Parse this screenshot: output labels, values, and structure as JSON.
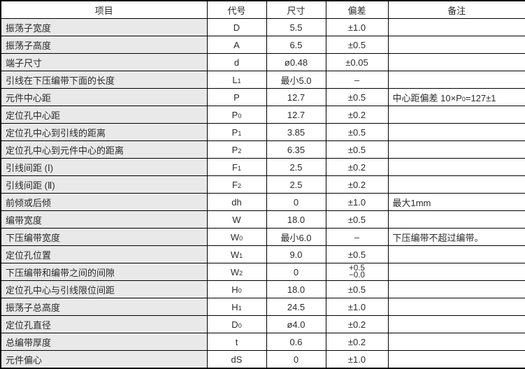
{
  "table": {
    "headers": {
      "item": "项目",
      "code": "代号",
      "size": "尺寸",
      "deviation": "偏差",
      "remark": "备注"
    },
    "rows": [
      {
        "item": "振荡子宽度",
        "code": "D",
        "sub": "",
        "size": "5.5",
        "deviation": "±1.0",
        "remark": ""
      },
      {
        "item": "振荡子高度",
        "code": "A",
        "sub": "",
        "size": "6.5",
        "deviation": "±0.5",
        "remark": ""
      },
      {
        "item": "端子尺寸",
        "code": "d",
        "sub": "",
        "size": "ø0.48",
        "deviation": "±0.05",
        "remark": ""
      },
      {
        "item": "引线在下压编带下面的长度",
        "code": "L",
        "sub": "1",
        "size": "最小5.0",
        "deviation": "–",
        "remark": ""
      },
      {
        "item": "元件中心距",
        "code": "P",
        "sub": "",
        "size": "12.7",
        "deviation": "±0.5",
        "remark_parts": [
          {
            "t": "中心距偏差 10×P"
          },
          {
            "t": "0",
            "sub": true
          },
          {
            "t": "=127±1"
          }
        ]
      },
      {
        "item": "定位孔中心距",
        "code": "P",
        "sub": "0",
        "size": "12.7",
        "deviation": "±0.2",
        "remark": ""
      },
      {
        "item": "定位孔中心到引线的距离",
        "code": "P",
        "sub": "1",
        "size": "3.85",
        "deviation": "±0.5",
        "remark": ""
      },
      {
        "item": "定位孔中心到元件中心的距离",
        "code": "P",
        "sub": "2",
        "size": "6.35",
        "deviation": "±0.5",
        "remark": ""
      },
      {
        "item": "引线间距 (Ⅰ)",
        "code": "F",
        "sub": "1",
        "size": "2.5",
        "deviation": "±0.2",
        "remark": ""
      },
      {
        "item": "引线间距 (Ⅱ)",
        "code": "F",
        "sub": "2",
        "size": "2.5",
        "deviation": "±0.2",
        "remark": ""
      },
      {
        "item": "前倾或后倾",
        "code": "dh",
        "sub": "",
        "size": "0",
        "deviation": "±1.0",
        "remark": "最大1mm"
      },
      {
        "item": "编带宽度",
        "code": "W",
        "sub": "",
        "size": "18.0",
        "deviation": "±0.5",
        "remark": ""
      },
      {
        "item": "下压编带宽度",
        "code": "W",
        "sub": "0",
        "size": "最小6.0",
        "deviation": "–",
        "remark": "下压编带不超过编带。"
      },
      {
        "item": "定位孔位置",
        "code": "W",
        "sub": "1",
        "size": "9.0",
        "deviation": "±0.5",
        "remark": ""
      },
      {
        "item": "下压编带和编带之间的间隙",
        "code": "W",
        "sub": "2",
        "size": "0",
        "deviation_stack": [
          "+0.5",
          "−0.0"
        ],
        "remark": ""
      },
      {
        "item": "定位孔中心与引线限位间距",
        "code": "H",
        "sub": "0",
        "size": "18.0",
        "deviation": "±0.5",
        "remark": ""
      },
      {
        "item": "振荡子总高度",
        "code": "H",
        "sub": "1",
        "size": "24.5",
        "deviation": "±1.0",
        "remark": ""
      },
      {
        "item": "定位孔直径",
        "code": "D",
        "sub": "0",
        "size": "ø4.0",
        "deviation": "±0.2",
        "remark": ""
      },
      {
        "item": "总编带厚度",
        "code": "t",
        "sub": "",
        "size": "0.6",
        "deviation": "±0.2",
        "remark": ""
      },
      {
        "item": "元件偏心",
        "code": "dS",
        "sub": "",
        "size": "0",
        "deviation": "±1.0",
        "remark": ""
      }
    ],
    "colors": {
      "item_column_bg": "#e9e9e9",
      "border": "#000000",
      "text": "#2b2b2b",
      "background": "#ffffff"
    }
  }
}
